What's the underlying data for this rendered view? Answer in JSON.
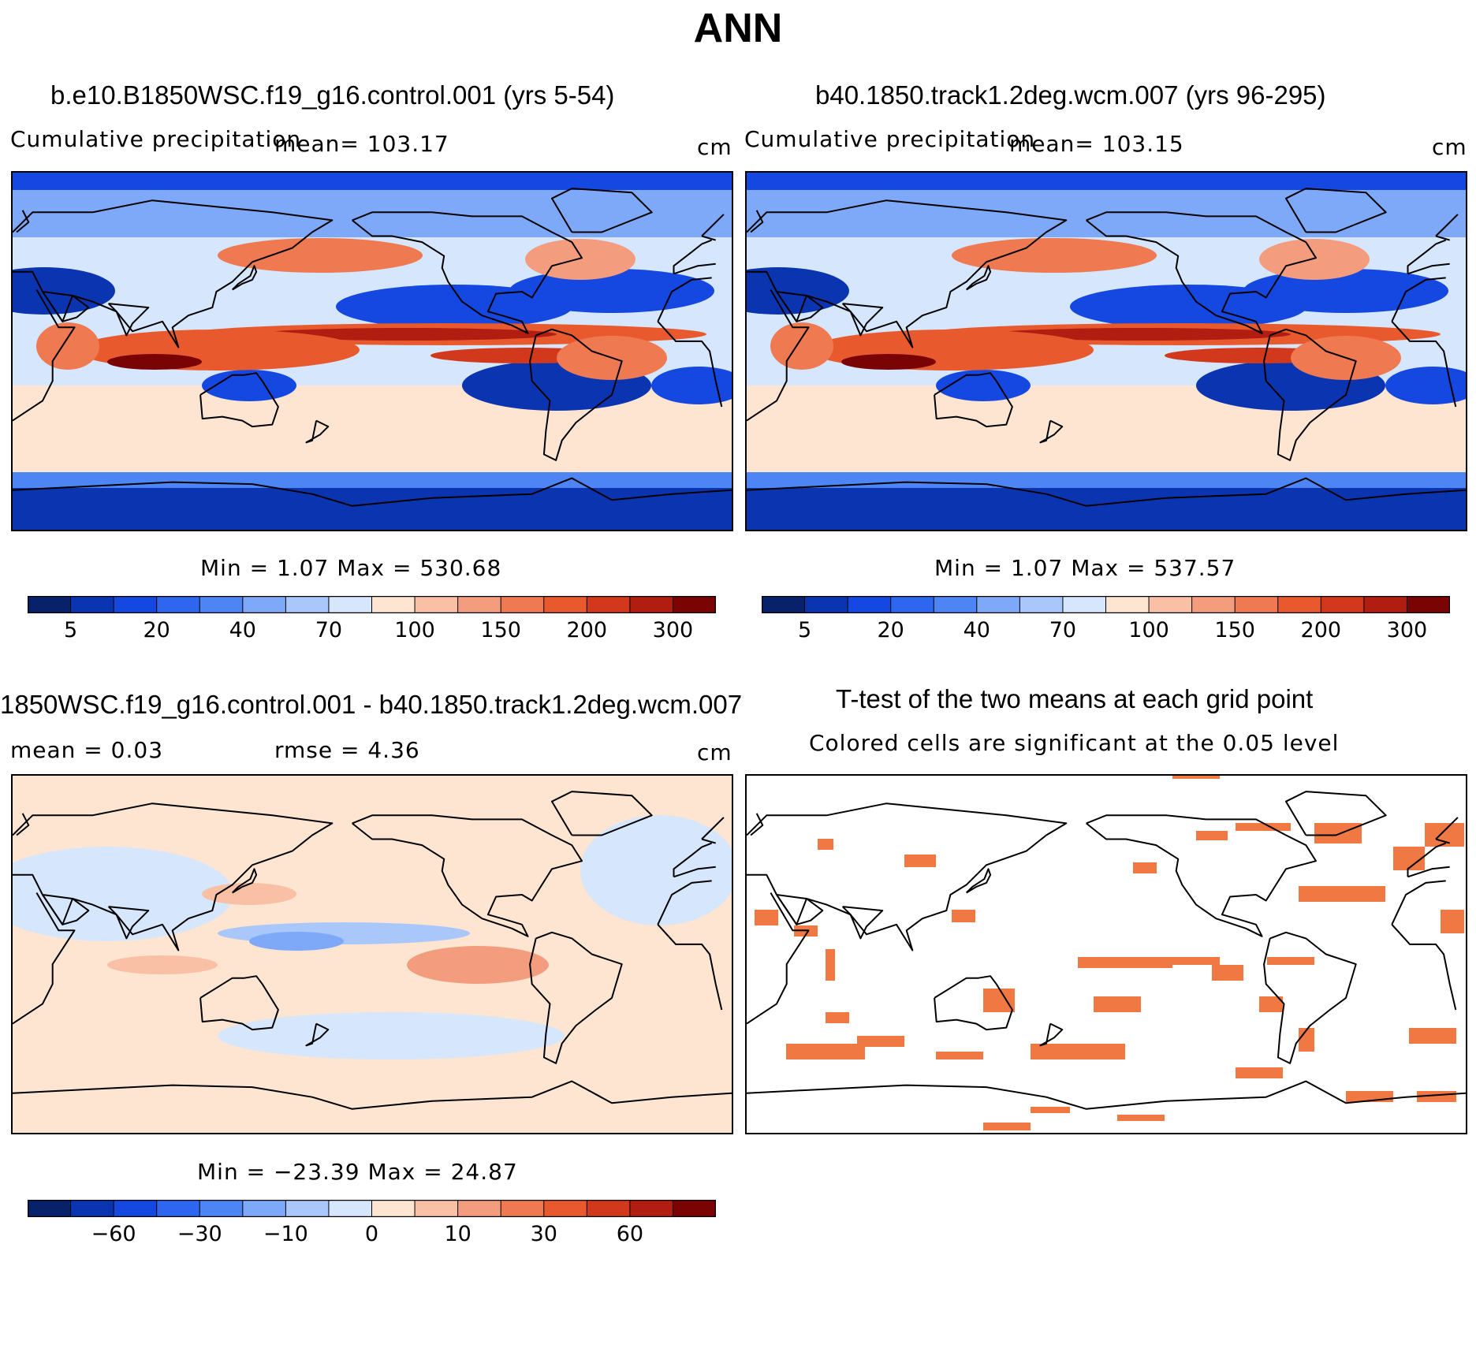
{
  "figure": {
    "title": "ANN"
  },
  "panels": [
    {
      "title": "b.e10.B1850WSC.f19_g16.control.001 (yrs 5-54)",
      "left_label": "Cumulative precipitation",
      "center_label": "mean= 103.17",
      "units": "cm",
      "minmax": "Min =    1.07 Max = 530.68"
    },
    {
      "title": "b40.1850.track1.2deg.wcm.007 (yrs 96-295)",
      "left_label": "Cumulative precipitation",
      "center_label": "mean= 103.15",
      "units": "cm",
      "minmax": "Min =    1.07 Max = 537.57"
    },
    {
      "title": "1850WSC.f19_g16.control.001 - b40.1850.track1.2deg.wcm.007",
      "left_label": "mean =    0.03",
      "center_label": "rmse =    4.36",
      "units": "cm",
      "minmax": "Min = −23.39 Max =  24.87"
    },
    {
      "title": "T-test of the two means at each grid point",
      "left_label": "Colored cells are significant at the 0.05 level"
    }
  ],
  "chart_data": [
    {
      "type": "heatmap",
      "title": "b.e10.B1850WSC.f19_g16.control.001 (yrs 5-54)",
      "variable": "Cumulative precipitation",
      "units": "cm",
      "mean": 103.17,
      "min": 1.07,
      "max": 530.68,
      "colorbar_labels": [
        "5",
        "20",
        "40",
        "70",
        "100",
        "150",
        "200",
        "300"
      ],
      "levels": [
        5,
        10,
        20,
        30,
        40,
        55,
        70,
        85,
        100,
        125,
        150,
        175,
        200,
        250,
        300
      ],
      "colors": [
        "#08216b",
        "#0b35b0",
        "#1448e0",
        "#2f66f0",
        "#4e85f5",
        "#7ea9f8",
        "#a9c7fb",
        "#d6e6fd",
        "#fde5d2",
        "#f9c0a6",
        "#f49d7e",
        "#ef7a52",
        "#e85a2e",
        "#d2391c",
        "#b11d10",
        "#7a0404"
      ]
    },
    {
      "type": "heatmap",
      "title": "b40.1850.track1.2deg.wcm.007 (yrs 96-295)",
      "variable": "Cumulative precipitation",
      "units": "cm",
      "mean": 103.15,
      "min": 1.07,
      "max": 537.57,
      "colorbar_labels": [
        "5",
        "20",
        "40",
        "70",
        "100",
        "150",
        "200",
        "300"
      ],
      "levels": [
        5,
        10,
        20,
        30,
        40,
        55,
        70,
        85,
        100,
        125,
        150,
        175,
        200,
        250,
        300
      ],
      "colors": [
        "#08216b",
        "#0b35b0",
        "#1448e0",
        "#2f66f0",
        "#4e85f5",
        "#7ea9f8",
        "#a9c7fb",
        "#d6e6fd",
        "#fde5d2",
        "#f9c0a6",
        "#f49d7e",
        "#ef7a52",
        "#e85a2e",
        "#d2391c",
        "#b11d10",
        "#7a0404"
      ]
    },
    {
      "type": "heatmap",
      "title": "1850WSC.f19_g16.control.001 - b40.1850.track1.2deg.wcm.007",
      "units": "cm",
      "mean": 0.03,
      "rmse": 4.36,
      "min": -23.39,
      "max": 24.87,
      "colorbar_labels": [
        "−60",
        "−30",
        "−10",
        "0",
        "10",
        "30",
        "60"
      ],
      "levels": [
        -80,
        -60,
        -45,
        -30,
        -20,
        -10,
        -5,
        0,
        5,
        10,
        20,
        30,
        45,
        60,
        80
      ],
      "colors": [
        "#08216b",
        "#0b35b0",
        "#1448e0",
        "#2f66f0",
        "#4e85f5",
        "#7ea9f8",
        "#a9c7fb",
        "#d6e6fd",
        "#fde5d2",
        "#f9c0a6",
        "#f49d7e",
        "#ef7a52",
        "#e85a2e",
        "#d2391c",
        "#b11d10",
        "#7a0404"
      ]
    },
    {
      "type": "heatmap",
      "title": "T-test of the two means at each grid point",
      "description_label": "Colored cells are significant at the 0.05 level",
      "significance_level": 0.05,
      "significant_color": "#f07843"
    }
  ],
  "colors": {
    "land_outline": "#000000",
    "background": "#ffffff"
  }
}
